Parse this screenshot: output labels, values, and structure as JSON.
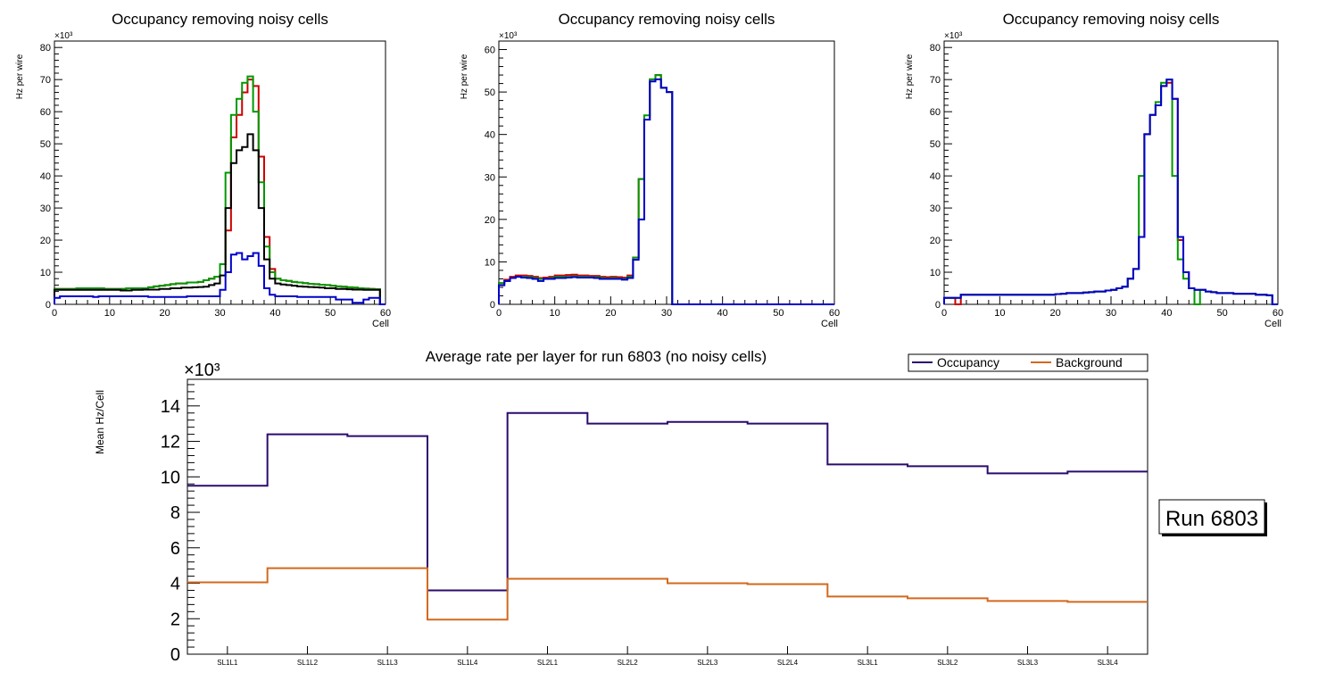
{
  "canvas_label": "ROOT canvas: occupancy and average rate per layer",
  "colors": {
    "red": "#cc0000",
    "green": "#009900",
    "black": "#000000",
    "blue": "#0000cc",
    "occupancy": "#2b0a6e",
    "background": "#d2691e"
  },
  "chart_data": [
    {
      "type": "line",
      "title": "Occupancy removing noisy cells",
      "xlabel": "Cell",
      "ylabel": "Hz per wire",
      "exponent": "×10³",
      "xlim": [
        0,
        60
      ],
      "ylim": [
        0,
        82
      ],
      "xticks": [
        0,
        10,
        20,
        30,
        40,
        50,
        60
      ],
      "yticks": [
        0,
        10,
        20,
        30,
        40,
        50,
        60,
        70,
        80
      ],
      "series": [
        {
          "name": "red",
          "color": "#cc0000",
          "values": [
            4.8,
            4.8,
            4.8,
            4.8,
            5,
            5,
            5,
            5,
            5,
            4.8,
            4.8,
            4.8,
            4.8,
            5,
            5,
            5,
            5,
            5.3,
            5.6,
            5.8,
            6,
            6.3,
            6.5,
            6.5,
            6.8,
            6.8,
            7,
            7.5,
            8,
            8.6,
            12.5,
            23,
            52,
            59,
            66,
            70,
            68,
            46,
            21,
            11,
            8,
            7.5,
            7.3,
            7,
            6.8,
            6.6,
            6.4,
            6.3,
            6.1,
            6,
            5.8,
            5.6,
            5.5,
            5.3,
            5.2,
            5,
            4.9,
            4.8,
            4.7,
            0
          ]
        },
        {
          "name": "green",
          "color": "#009900",
          "values": [
            4.8,
            4.8,
            4.8,
            4.8,
            5,
            5,
            5,
            5,
            5,
            4.8,
            4.8,
            4.8,
            4.8,
            5,
            5,
            5,
            5,
            5.3,
            5.6,
            5.8,
            6,
            6.3,
            6.5,
            6.5,
            6.8,
            6.8,
            7,
            7.5,
            8,
            8.6,
            12.5,
            41,
            59,
            64,
            69,
            71,
            60,
            38,
            18,
            10,
            8,
            7.5,
            7.3,
            7,
            6.8,
            6.6,
            6.4,
            6.3,
            6.1,
            6,
            5.8,
            5.6,
            5.5,
            5.3,
            5.2,
            5,
            4.9,
            4.8,
            4.7,
            0
          ]
        },
        {
          "name": "black",
          "color": "#000000",
          "values": [
            4.5,
            4.5,
            4.5,
            4.5,
            4.5,
            4.5,
            4.5,
            4.5,
            4.5,
            4.5,
            4.5,
            4.5,
            4.3,
            4.3,
            4.5,
            4.5,
            4.6,
            4.6,
            4.6,
            4.8,
            4.8,
            5,
            5,
            5.2,
            5.2,
            5.3,
            5.4,
            5.5,
            6,
            6.5,
            9,
            30,
            44,
            48,
            49,
            53,
            48,
            30,
            14,
            8,
            6.5,
            6.2,
            6,
            5.8,
            5.6,
            5.5,
            5.4,
            5.3,
            5.2,
            5,
            5,
            4.8,
            4.8,
            4.7,
            4.6,
            4.6,
            4.5,
            4.5,
            4.5,
            0
          ]
        },
        {
          "name": "blue",
          "color": "#0000cc",
          "values": [
            2,
            2.5,
            2.5,
            2.5,
            2.5,
            2.5,
            2.5,
            2.3,
            2.5,
            2.5,
            2.5,
            2.5,
            2.5,
            2.5,
            2.5,
            2.5,
            2.5,
            2.3,
            2.3,
            2.3,
            2.3,
            2.3,
            2.3,
            2.3,
            2.5,
            2.5,
            2.5,
            2.5,
            2.5,
            2.5,
            4.5,
            10,
            15.5,
            16,
            14,
            15,
            16,
            12,
            5,
            3,
            2.5,
            2.5,
            2.5,
            2.5,
            2.3,
            2.3,
            2.3,
            2.3,
            2.3,
            2.3,
            2.3,
            1.5,
            1.5,
            1.5,
            0.5,
            0.5,
            1.5,
            2,
            2,
            0
          ]
        }
      ]
    },
    {
      "type": "line",
      "title": "Occupancy removing noisy cells",
      "xlabel": "Cell",
      "ylabel": "Hz per wire",
      "exponent": "×10³",
      "xlim": [
        0,
        60
      ],
      "ylim": [
        0,
        62
      ],
      "xticks": [
        0,
        10,
        20,
        30,
        40,
        50,
        60
      ],
      "yticks": [
        0,
        10,
        20,
        30,
        40,
        50,
        60
      ],
      "series": [
        {
          "name": "red",
          "color": "#cc0000",
          "values": [
            5,
            5.8,
            6.5,
            6.8,
            6.8,
            6.7,
            6.5,
            6.2,
            6.3,
            6.5,
            6.8,
            6.8,
            6.9,
            7,
            6.8,
            6.8,
            6.7,
            6.7,
            6.5,
            6.4,
            6.5,
            6.4,
            6.3,
            6.8,
            11,
            29.5,
            43.5,
            53,
            54,
            51,
            50,
            0,
            0,
            0,
            0,
            0,
            0,
            0,
            0,
            0,
            0,
            0,
            0,
            0,
            0,
            0,
            0,
            0,
            0,
            0,
            0,
            0,
            0,
            0,
            0,
            0,
            0,
            0,
            0,
            0
          ]
        },
        {
          "name": "green",
          "color": "#009900",
          "values": [
            5,
            5.5,
            6.2,
            6.5,
            6.5,
            6.4,
            6.2,
            6,
            6,
            6.2,
            6.5,
            6.5,
            6.5,
            6.6,
            6.5,
            6.5,
            6.4,
            6.4,
            6.2,
            6.1,
            6.2,
            6.1,
            6,
            6.5,
            11,
            29.5,
            44.5,
            53,
            54,
            51,
            50,
            0,
            0,
            0,
            0,
            0,
            0,
            0,
            0,
            0,
            0,
            0,
            0,
            0,
            0,
            0,
            0,
            0,
            0,
            0,
            0,
            0,
            0,
            0,
            0,
            0,
            0,
            0,
            0,
            0
          ]
        },
        {
          "name": "blue",
          "color": "#0000cc",
          "values": [
            4.5,
            5.5,
            6.2,
            6.5,
            6.3,
            6.2,
            6,
            5.5,
            6,
            6,
            6.2,
            6.2,
            6.3,
            6.4,
            6.3,
            6.3,
            6.3,
            6.2,
            6,
            6,
            6,
            6,
            5.8,
            6.2,
            10.5,
            20,
            43.5,
            52.5,
            53,
            51,
            50,
            0,
            0,
            0,
            0,
            0,
            0,
            0,
            0,
            0,
            0,
            0,
            0,
            0,
            0,
            0,
            0,
            0,
            0,
            0,
            0,
            0,
            0,
            0,
            0,
            0,
            0,
            0,
            0,
            0
          ]
        }
      ]
    },
    {
      "type": "line",
      "title": "Occupancy removing noisy cells",
      "xlabel": "Cell",
      "ylabel": "Hz per wire",
      "exponent": "×10³",
      "xlim": [
        0,
        60
      ],
      "ylim": [
        0,
        82
      ],
      "xticks": [
        0,
        10,
        20,
        30,
        40,
        50,
        60
      ],
      "yticks": [
        0,
        10,
        20,
        30,
        40,
        50,
        60,
        70,
        80
      ],
      "series": [
        {
          "name": "red",
          "color": "#cc0000",
          "values": [
            2,
            2,
            0,
            3,
            3,
            3,
            3,
            3,
            3,
            3,
            3,
            3,
            3,
            3,
            3,
            3,
            3,
            3,
            3,
            3,
            3.2,
            3.3,
            3.5,
            3.5,
            3.5,
            3.7,
            3.8,
            4,
            4,
            4.3,
            4.5,
            5,
            5.5,
            8,
            11,
            21,
            53,
            59,
            62,
            68,
            69,
            64,
            20,
            10,
            5,
            4.5,
            4.5,
            4,
            3.8,
            3.5,
            3.5,
            3.5,
            3.3,
            3.3,
            3.3,
            3.3,
            3,
            3,
            2.8,
            0
          ]
        },
        {
          "name": "green",
          "color": "#009900",
          "values": [
            2,
            2,
            2,
            3,
            3,
            3,
            3,
            3,
            3,
            3,
            3,
            3,
            3,
            3,
            3,
            3,
            3,
            3,
            3,
            3,
            3.2,
            3.3,
            3.5,
            3.5,
            3.5,
            3.7,
            3.8,
            4,
            4,
            4.3,
            4.5,
            5,
            5.5,
            8,
            11,
            40,
            53,
            59,
            63,
            69,
            70,
            40,
            14,
            8,
            5,
            0,
            4.5,
            4,
            3.8,
            3.5,
            3.5,
            3.5,
            3.3,
            3.3,
            3.3,
            3.3,
            3,
            3,
            2.8,
            0
          ]
        },
        {
          "name": "blue",
          "color": "#0000cc",
          "values": [
            2,
            2,
            2,
            3,
            3,
            3,
            3,
            3,
            3,
            3,
            3,
            3,
            3,
            3,
            3,
            3,
            3,
            3,
            3,
            3,
            3.2,
            3.3,
            3.5,
            3.5,
            3.5,
            3.7,
            3.8,
            4,
            4,
            4.3,
            4.5,
            5,
            5.5,
            8,
            11,
            21,
            53,
            59,
            62,
            68,
            70,
            64,
            21,
            10,
            5,
            4.5,
            4.5,
            4,
            3.8,
            3.5,
            3.5,
            3.5,
            3.3,
            3.3,
            3.3,
            3.3,
            3,
            3,
            2.8,
            0
          ]
        }
      ]
    },
    {
      "type": "line",
      "title": "Average rate per layer for run 6803 (no noisy cells)",
      "xlabel": "",
      "ylabel": "Mean Hz/Cell",
      "exponent": "×10³",
      "ylim": [
        0,
        15.5
      ],
      "yticks": [
        0,
        2,
        4,
        6,
        8,
        10,
        12,
        14
      ],
      "categories": [
        "SL1L1",
        "SL1L2",
        "SL1L3",
        "SL1L4",
        "SL2L1",
        "SL2L2",
        "SL2L3",
        "SL2L4",
        "SL3L1",
        "SL3L2",
        "SL3L3",
        "SL3L4"
      ],
      "series": [
        {
          "name": "Occupancy",
          "color": "#2b0a6e",
          "values": [
            9.5,
            12.4,
            12.3,
            3.6,
            13.6,
            13.0,
            13.1,
            13.0,
            10.7,
            10.6,
            10.2,
            10.3
          ]
        },
        {
          "name": "Background",
          "color": "#d2691e",
          "values": [
            4.05,
            4.85,
            4.85,
            1.95,
            4.25,
            4.25,
            4.0,
            3.95,
            3.25,
            3.15,
            3.0,
            2.95
          ]
        }
      ],
      "legend": {
        "placement": "top-right",
        "entries": [
          "Occupancy",
          "Background"
        ]
      },
      "annotation": "Run 6803"
    }
  ]
}
